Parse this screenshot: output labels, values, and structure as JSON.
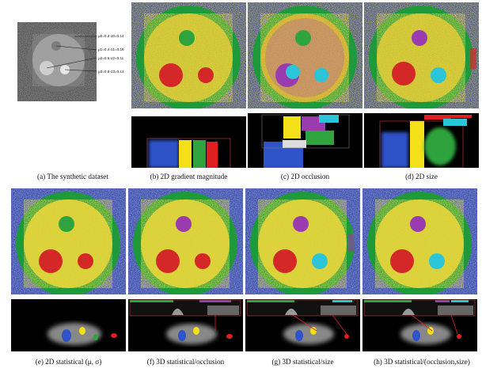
{
  "figure": {
    "captions": {
      "a": "(a) The synthetic dataset",
      "b": "(b) 2D gradient magnitude",
      "c": "(c) 2D occlusion",
      "d": "(d) 2D size",
      "e": "(e) 2D statistical (μ, σ)",
      "f": "(f) 3D statistical/occlusion",
      "g": "(g) 3D statistical/size",
      "h": "(h) 3D statistical/(occlusion,size)"
    },
    "dataset_annotations": [
      "μ0=0.2 σ0=0.14",
      "μ1=0.4 σ1=0.16",
      "μ2=0.6 σ2=0.11",
      "μ3=0.8 σ3=0.13"
    ],
    "colors": {
      "background_noise": "#3b4fa8",
      "shell": "#1f9a3a",
      "body": "#d8cf2e",
      "red": "#d42828",
      "green_small": "#2fa33d",
      "purple": "#9b3bb0",
      "cyan": "#2cc4d8",
      "blue": "#2f53c9",
      "yellow": "#f3e019"
    }
  }
}
